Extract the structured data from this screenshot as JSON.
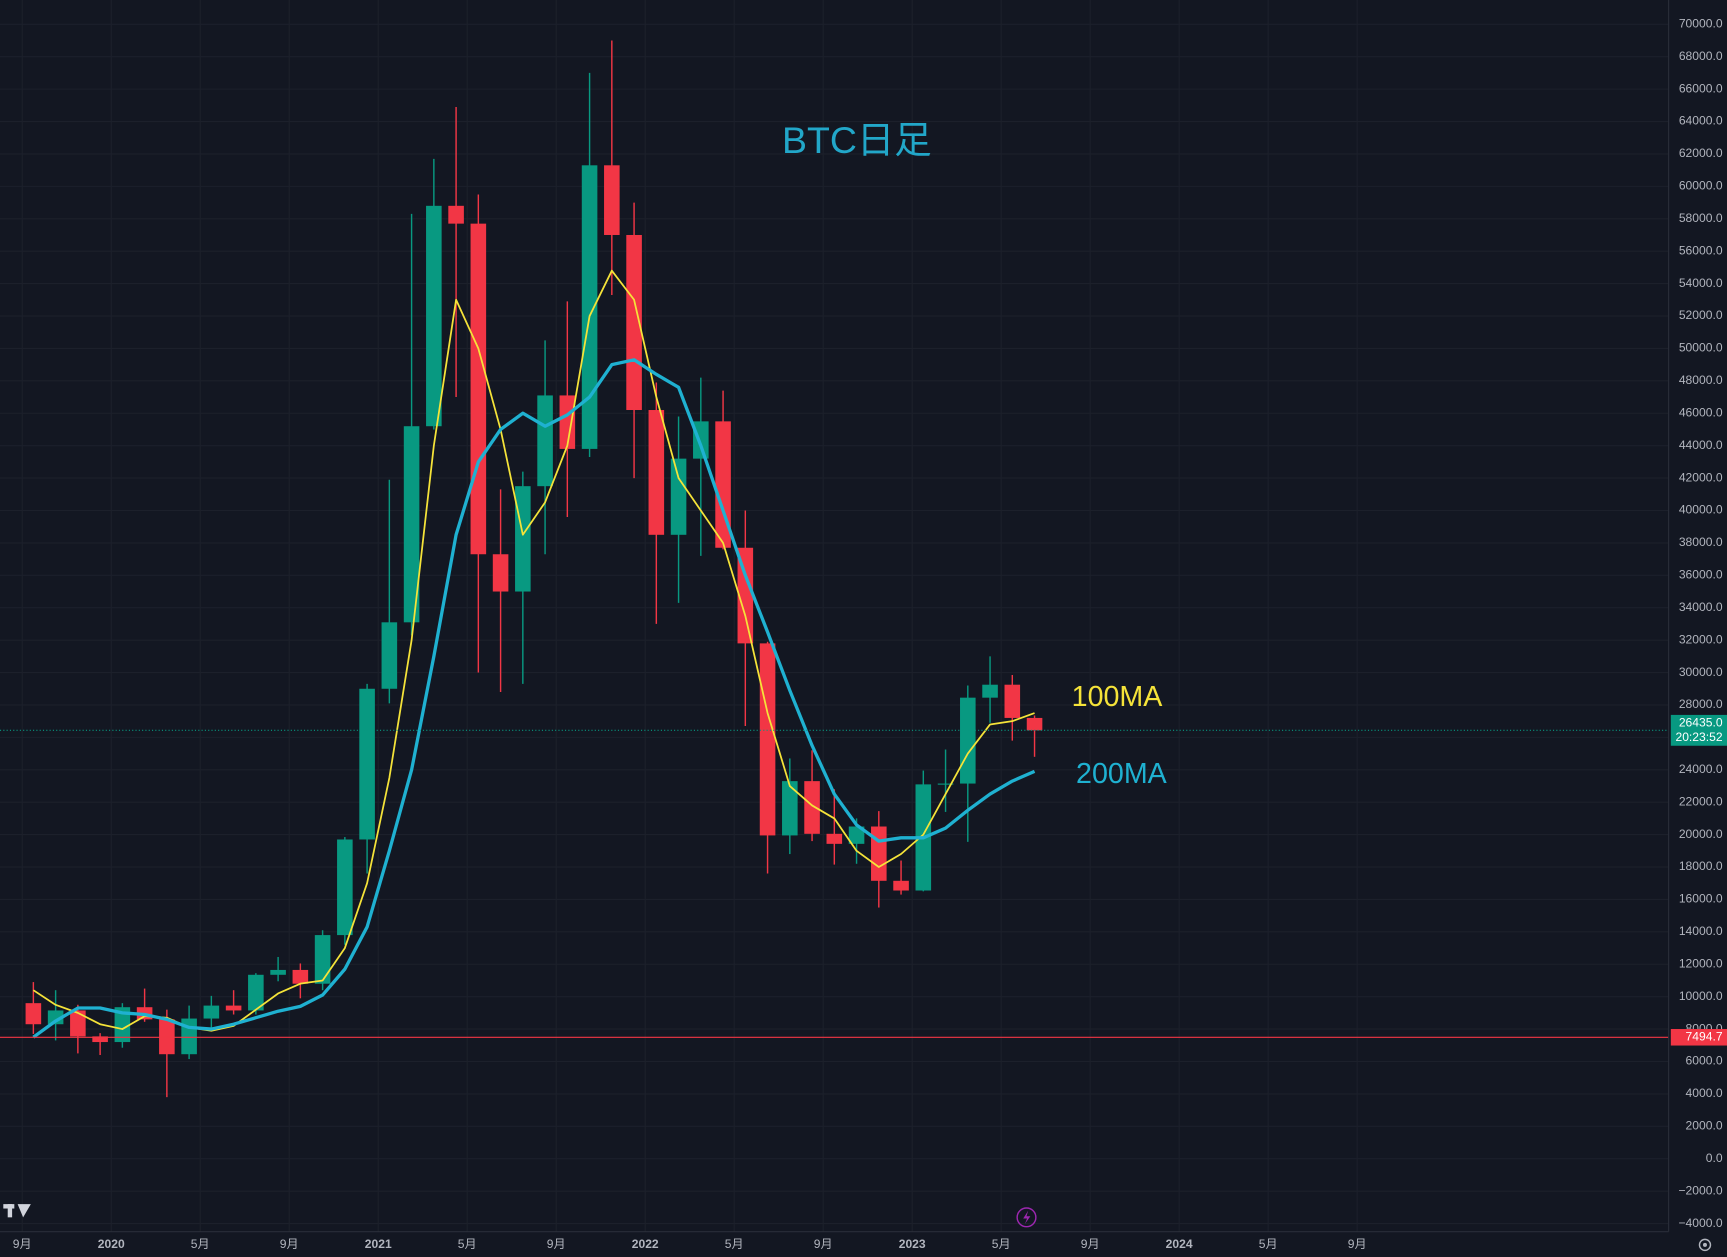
{
  "chart_data": {
    "type": "candlestick",
    "title": "BTC日足",
    "x": [
      "2019-09",
      "2019-10",
      "2019-11",
      "2019-12",
      "2020-01",
      "2020-02",
      "2020-03",
      "2020-04",
      "2020-05",
      "2020-06",
      "2020-07",
      "2020-08",
      "2020-09",
      "2020-10",
      "2020-11",
      "2020-12",
      "2021-01",
      "2021-02",
      "2021-03",
      "2021-04",
      "2021-05",
      "2021-06",
      "2021-07",
      "2021-08",
      "2021-09",
      "2021-10",
      "2021-11",
      "2021-12",
      "2022-01",
      "2022-02",
      "2022-03",
      "2022-04",
      "2022-05",
      "2022-06",
      "2022-07",
      "2022-08",
      "2022-09",
      "2022-10",
      "2022-11",
      "2022-12",
      "2023-01",
      "2023-02",
      "2023-03",
      "2023-04",
      "2023-05",
      "2023-06"
    ],
    "open": [
      9600,
      8300,
      9150,
      7550,
      7200,
      9350,
      8600,
      6450,
      8650,
      9450,
      9150,
      11350,
      11650,
      10800,
      13800,
      19700,
      29000,
      33100,
      45200,
      58800,
      57700,
      37300,
      35000,
      41500,
      47100,
      43800,
      61300,
      57000,
      46200,
      38500,
      43200,
      45500,
      37700,
      31800,
      19950,
      23300,
      20050,
      19430,
      20500,
      17150,
      16550,
      23100,
      23150,
      28450,
      29250,
      27200
    ],
    "high": [
      10900,
      10400,
      9500,
      7750,
      9600,
      10500,
      9200,
      9450,
      10050,
      10400,
      11450,
      12450,
      12050,
      14100,
      19850,
      29300,
      41900,
      58300,
      61700,
      64900,
      59500,
      41300,
      42400,
      50500,
      52900,
      67000,
      69000,
      59000,
      47900,
      45800,
      48200,
      47400,
      40000,
      31900,
      24700,
      25200,
      22800,
      21000,
      21450,
      18400,
      23950,
      25250,
      29200,
      31000,
      29850,
      27350
    ],
    "low": [
      7700,
      7300,
      6500,
      6400,
      6850,
      8450,
      3800,
      6150,
      8100,
      8900,
      8900,
      10950,
      9900,
      10400,
      13200,
      17600,
      28100,
      32300,
      45000,
      47000,
      30000,
      28800,
      29300,
      37300,
      39600,
      43300,
      53300,
      42000,
      33000,
      34300,
      37200,
      37600,
      26700,
      17600,
      18800,
      19600,
      18150,
      18200,
      15500,
      16300,
      16500,
      21400,
      19550,
      26900,
      25800,
      24800
    ],
    "close": [
      8300,
      9150,
      7550,
      7200,
      9350,
      8600,
      6450,
      8650,
      9450,
      9150,
      11350,
      11650,
      10800,
      13800,
      19700,
      29000,
      33100,
      45200,
      58800,
      57700,
      37300,
      35000,
      41500,
      47100,
      43800,
      61300,
      57000,
      46200,
      38500,
      43200,
      45500,
      37700,
      31800,
      19950,
      23300,
      20050,
      19430,
      20500,
      17150,
      16550,
      23100,
      23150,
      28450,
      29250,
      27200,
      26435
    ],
    "up_color": "#089981",
    "down_color": "#f23645",
    "series": [
      {
        "name": "100MA",
        "color": "#f5e339",
        "values": [
          10400,
          9500,
          9000,
          8300,
          8000,
          8800,
          8700,
          8100,
          7900,
          8200,
          9200,
          10200,
          10800,
          11000,
          13000,
          17000,
          23500,
          32000,
          44000,
          53000,
          50000,
          45000,
          38500,
          40500,
          44000,
          52000,
          54800,
          53000,
          47000,
          42000,
          40000,
          38000,
          33500,
          27500,
          23000,
          21800,
          21000,
          19000,
          18000,
          18800,
          20000,
          22500,
          25000,
          26800,
          27000,
          27500
        ]
      },
      {
        "name": "200MA",
        "color": "#1fb1d1",
        "values": [
          7500,
          8500,
          9300,
          9300,
          9000,
          8900,
          8600,
          8100,
          8000,
          8300,
          8700,
          9100,
          9400,
          10100,
          11700,
          14300,
          19000,
          24000,
          31000,
          38500,
          43000,
          45000,
          46000,
          45200,
          45900,
          47000,
          49000,
          49300,
          48400,
          47600,
          44000,
          40000,
          36000,
          32500,
          28900,
          25500,
          22500,
          20600,
          19600,
          19800,
          19800,
          20400,
          21500,
          22500,
          23300,
          23900
        ]
      }
    ],
    "xlim": [
      "2019-08",
      "2025-11"
    ],
    "xticks": [
      {
        "value": "2019-09",
        "label": "9月"
      },
      {
        "value": "2020-01",
        "label": "2020"
      },
      {
        "value": "2020-05",
        "label": "5月"
      },
      {
        "value": "2020-09",
        "label": "9月"
      },
      {
        "value": "2021-01",
        "label": "2021"
      },
      {
        "value": "2021-05",
        "label": "5月"
      },
      {
        "value": "2021-09",
        "label": "9月"
      },
      {
        "value": "2022-01",
        "label": "2022"
      },
      {
        "value": "2022-05",
        "label": "5月"
      },
      {
        "value": "2022-09",
        "label": "9月"
      },
      {
        "value": "2023-01",
        "label": "2023"
      },
      {
        "value": "2023-05",
        "label": "5月"
      },
      {
        "value": "2023-09",
        "label": "9月"
      },
      {
        "value": "2024-01",
        "label": "2024"
      },
      {
        "value": "2024-05",
        "label": "5月"
      },
      {
        "value": "2024-09",
        "label": "9月"
      }
    ],
    "ylim": [
      -4500,
      71500
    ],
    "yticks": [
      {
        "value": 70000,
        "label": "70000.0"
      },
      {
        "value": 68000,
        "label": "68000.0"
      },
      {
        "value": 66000,
        "label": "66000.0"
      },
      {
        "value": 64000,
        "label": "64000.0"
      },
      {
        "value": 62000,
        "label": "62000.0"
      },
      {
        "value": 60000,
        "label": "60000.0"
      },
      {
        "value": 58000,
        "label": "58000.0"
      },
      {
        "value": 56000,
        "label": "56000.0"
      },
      {
        "value": 54000,
        "label": "54000.0"
      },
      {
        "value": 52000,
        "label": "52000.0"
      },
      {
        "value": 50000,
        "label": "50000.0"
      },
      {
        "value": 48000,
        "label": "48000.0"
      },
      {
        "value": 46000,
        "label": "46000.0"
      },
      {
        "value": 44000,
        "label": "44000.0"
      },
      {
        "value": 42000,
        "label": "42000.0"
      },
      {
        "value": 40000,
        "label": "40000.0"
      },
      {
        "value": 38000,
        "label": "38000.0"
      },
      {
        "value": 36000,
        "label": "36000.0"
      },
      {
        "value": 34000,
        "label": "34000.0"
      },
      {
        "value": 32000,
        "label": "32000.0"
      },
      {
        "value": 30000,
        "label": "30000.0"
      },
      {
        "value": 28000,
        "label": "28000.0"
      },
      {
        "value": 26000,
        "label": "26000.0"
      },
      {
        "value": 24000,
        "label": "24000.0"
      },
      {
        "value": 22000,
        "label": "22000.0"
      },
      {
        "value": 20000,
        "label": "20000.0"
      },
      {
        "value": 18000,
        "label": "18000.0"
      },
      {
        "value": 16000,
        "label": "16000.0"
      },
      {
        "value": 14000,
        "label": "14000.0"
      },
      {
        "value": 12000,
        "label": "12000.0"
      },
      {
        "value": 10000,
        "label": "10000.0"
      },
      {
        "value": 8000,
        "label": "8000.0"
      },
      {
        "value": 6000,
        "label": "6000.0"
      },
      {
        "value": 4000,
        "label": "4000.0"
      },
      {
        "value": 2000,
        "label": "2000.0"
      },
      {
        "value": 0,
        "label": "0.0"
      },
      {
        "value": -2000,
        "label": "−2000.0"
      },
      {
        "value": -4000,
        "label": "−4000.0"
      }
    ],
    "grid": true,
    "price_line": {
      "value": 26435.0,
      "label": "26435.0",
      "timer": "20:23:52",
      "color": "#089981"
    },
    "alert_line": {
      "value": 7494.7,
      "label": "7494.7",
      "color": "#f23645"
    }
  }
}
